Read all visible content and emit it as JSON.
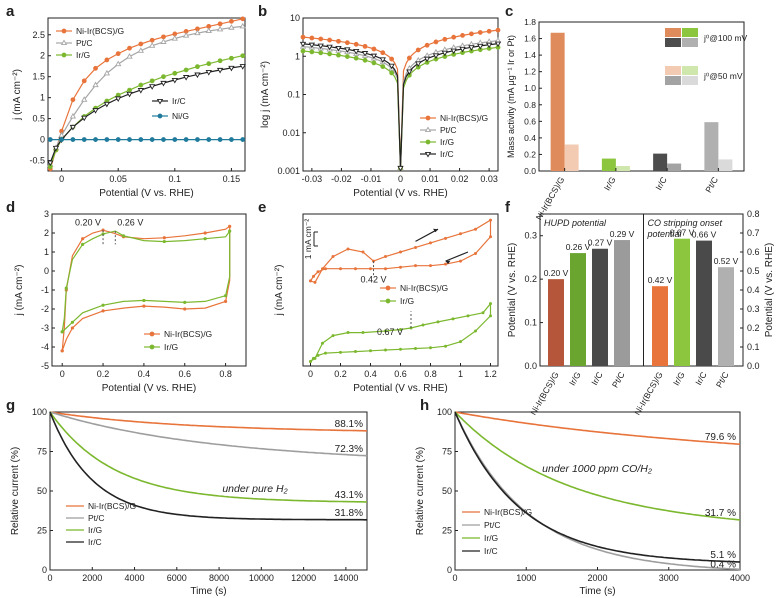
{
  "colors": {
    "orange": "#e8743b",
    "lightgray": "#a6a6a6",
    "green": "#7cb82f",
    "black": "#222222",
    "teal": "#1f7a9c",
    "grayC": "#9e9e9e"
  },
  "chart_data": [
    {
      "panel": "a",
      "type": "line",
      "title": "",
      "xlabel": "Potential (V vs. RHE)",
      "ylabel": "j (mA cm⁻²)",
      "xlim": [
        -0.012,
        0.162
      ],
      "ylim": [
        -0.75,
        2.9
      ],
      "xticks": [
        0,
        0.05,
        0.1,
        0.15
      ],
      "yticks": [
        -0.5,
        0,
        0.5,
        1,
        1.5,
        2,
        2.5
      ],
      "legend_upper": [
        "Ni-Ir(BCS)/G",
        "Pt/C",
        "Ir/G"
      ],
      "legend_lower": [
        "Ir/C",
        "Ni/G"
      ],
      "series": [
        {
          "name": "Ni-Ir(BCS)/G",
          "color": "orange",
          "marker": "circle-filled",
          "x": [
            -0.01,
            -0.005,
            0,
            0.01,
            0.02,
            0.03,
            0.04,
            0.05,
            0.06,
            0.07,
            0.08,
            0.09,
            0.1,
            0.11,
            0.12,
            0.13,
            0.14,
            0.15,
            0.16
          ],
          "y": [
            -0.7,
            -0.25,
            0.2,
            0.95,
            1.4,
            1.7,
            1.9,
            2.05,
            2.18,
            2.28,
            2.37,
            2.45,
            2.52,
            2.58,
            2.64,
            2.7,
            2.76,
            2.82,
            2.88
          ]
        },
        {
          "name": "Pt/C",
          "color": "lightgray",
          "marker": "triangle-open",
          "x": [
            -0.01,
            -0.005,
            0,
            0.01,
            0.02,
            0.03,
            0.04,
            0.05,
            0.06,
            0.07,
            0.08,
            0.09,
            0.1,
            0.11,
            0.12,
            0.13,
            0.14,
            0.15,
            0.16
          ],
          "y": [
            -0.6,
            -0.2,
            0.1,
            0.55,
            0.95,
            1.3,
            1.58,
            1.8,
            1.98,
            2.12,
            2.24,
            2.33,
            2.41,
            2.48,
            2.54,
            2.59,
            2.63,
            2.67,
            2.7
          ]
        },
        {
          "name": "Ir/G",
          "color": "green",
          "marker": "circle-filled",
          "x": [
            -0.01,
            -0.005,
            0,
            0.01,
            0.02,
            0.03,
            0.04,
            0.05,
            0.06,
            0.07,
            0.08,
            0.09,
            0.1,
            0.11,
            0.12,
            0.13,
            0.14,
            0.15,
            0.16
          ],
          "y": [
            -0.65,
            -0.25,
            0.0,
            0.3,
            0.55,
            0.75,
            0.92,
            1.06,
            1.18,
            1.3,
            1.4,
            1.5,
            1.58,
            1.66,
            1.74,
            1.81,
            1.88,
            1.94,
            2.0
          ]
        },
        {
          "name": "Ir/C",
          "color": "black",
          "marker": "triangle-down-open",
          "x": [
            -0.01,
            -0.005,
            0,
            0.01,
            0.02,
            0.03,
            0.04,
            0.05,
            0.06,
            0.07,
            0.08,
            0.09,
            0.1,
            0.11,
            0.12,
            0.13,
            0.14,
            0.15,
            0.16
          ],
          "y": [
            -0.55,
            -0.2,
            0.0,
            0.3,
            0.52,
            0.7,
            0.85,
            0.98,
            1.09,
            1.18,
            1.27,
            1.35,
            1.42,
            1.49,
            1.55,
            1.61,
            1.66,
            1.71,
            1.75
          ]
        },
        {
          "name": "Ni/G",
          "color": "teal",
          "marker": "circle-filled",
          "x": [
            -0.01,
            0,
            0.01,
            0.02,
            0.03,
            0.04,
            0.05,
            0.06,
            0.07,
            0.08,
            0.09,
            0.1,
            0.11,
            0.12,
            0.13,
            0.14,
            0.15,
            0.16
          ],
          "y": [
            0,
            0,
            0,
            0,
            0,
            0,
            0,
            0,
            0,
            0,
            0,
            0,
            0,
            0,
            0,
            0,
            0,
            0
          ]
        }
      ]
    },
    {
      "panel": "b",
      "type": "line",
      "title": "",
      "xlabel": "Potential (V vs. RHE)",
      "ylabel": "log j (mA cm⁻²)",
      "yscale": "log",
      "xlim": [
        -0.033,
        0.033
      ],
      "ylim": [
        0.001,
        10
      ],
      "xticks": [
        -0.03,
        -0.02,
        -0.01,
        0,
        0.01,
        0.02,
        0.03
      ],
      "xtick_labels": [
        "-0.03",
        "-0.02",
        "-0.01",
        "0",
        "0.01",
        "0.02",
        "0.03"
      ],
      "yticks": [
        0.001,
        0.01,
        0.1,
        1,
        10
      ],
      "ytick_labels": [
        "0.001",
        "0.01",
        "0.1",
        "1",
        "10"
      ],
      "legend": [
        "Ni-Ir(BCS)/G",
        "Pt/C",
        "Ir/G",
        "Ir/C"
      ],
      "series": [
        {
          "name": "Ni-Ir(BCS)/G",
          "color": "orange",
          "marker": "circle-filled",
          "a": 3.0,
          "b": 4.5
        },
        {
          "name": "Pt/C",
          "color": "lightgray",
          "marker": "triangle-open",
          "a": 1.7,
          "b": 2.4
        },
        {
          "name": "Ir/G",
          "color": "green",
          "marker": "circle-filled",
          "a": 1.3,
          "b": 1.6
        },
        {
          "name": "Ir/C",
          "color": "black",
          "marker": "triangle-down-open",
          "a": 2.0,
          "b": 2.0
        }
      ]
    },
    {
      "panel": "c",
      "type": "bar",
      "title": "",
      "xlabel": "",
      "ylabel": "Mass activity (mA μg⁻¹ Ir or Pt)",
      "ylim": [
        0,
        1.8
      ],
      "yticks": [
        0,
        0.2,
        0.4,
        0.6,
        0.8,
        1.0,
        1.2,
        1.4,
        1.6,
        1.8
      ],
      "categories": [
        "Ni-Ir(BCS)/G",
        "Ir/G",
        "Ir/C",
        "Pt/C"
      ],
      "series": [
        {
          "name": "j⁰@100 mV",
          "values": [
            1.67,
            0.15,
            0.21,
            0.59
          ],
          "colors": [
            "#df8b5b",
            "#8cc63f",
            "#4d4d4d",
            "#b0b0b0"
          ]
        },
        {
          "name": "j⁰@50 mV",
          "values": [
            0.32,
            0.06,
            0.09,
            0.14
          ],
          "colors": [
            "#f3cbb3",
            "#cfe6ad",
            "#a3a3a3",
            "#dadada"
          ]
        }
      ],
      "legend_100": "j⁰@100 mV",
      "legend_50": "j⁰@50 mV"
    },
    {
      "panel": "d",
      "type": "line",
      "title": "",
      "xlabel": "Potential (V vs. RHE)",
      "ylabel": "j (mA cm⁻²)",
      "xlim": [
        -0.05,
        0.9
      ],
      "ylim": [
        -5,
        3
      ],
      "xticks": [
        0,
        0.2,
        0.4,
        0.6,
        0.8
      ],
      "yticks": [
        -5,
        -4,
        -3,
        -2,
        -1,
        0,
        1,
        2,
        3
      ],
      "legend": [
        "Ni-Ir(BCS)/G",
        "Ir/G"
      ],
      "annotations": [
        "0.20 V",
        "0.26 V"
      ],
      "series": [
        {
          "name": "Ni-Ir(BCS)/G",
          "color": "orange",
          "x": [
            0,
            0.01,
            0.02,
            0.05,
            0.1,
            0.15,
            0.2,
            0.25,
            0.3,
            0.4,
            0.5,
            0.6,
            0.7,
            0.8,
            0.82,
            0.82,
            0.8,
            0.7,
            0.6,
            0.5,
            0.4,
            0.3,
            0.2,
            0.1,
            0.05,
            0.02,
            0
          ],
          "y": [
            -4.2,
            -3.0,
            -1.0,
            0.8,
            1.7,
            2.0,
            2.15,
            2.0,
            1.8,
            1.7,
            1.75,
            1.85,
            2.0,
            2.2,
            2.35,
            -0.5,
            -1.6,
            -1.95,
            -2.0,
            -1.9,
            -1.85,
            -1.95,
            -2.1,
            -2.5,
            -3.0,
            -3.6,
            -4.2
          ]
        },
        {
          "name": "Ir/G",
          "color": "green",
          "x": [
            0,
            0.01,
            0.02,
            0.05,
            0.1,
            0.15,
            0.2,
            0.26,
            0.3,
            0.4,
            0.5,
            0.6,
            0.7,
            0.8,
            0.82,
            0.82,
            0.8,
            0.7,
            0.6,
            0.5,
            0.4,
            0.3,
            0.2,
            0.1,
            0.05,
            0.02,
            0
          ],
          "y": [
            -3.2,
            -2.5,
            -0.9,
            0.6,
            1.4,
            1.7,
            1.95,
            2.1,
            1.85,
            1.6,
            1.55,
            1.6,
            1.7,
            1.8,
            2.1,
            -0.3,
            -1.3,
            -1.6,
            -1.65,
            -1.6,
            -1.55,
            -1.6,
            -1.8,
            -2.2,
            -2.7,
            -3.0,
            -3.2
          ]
        }
      ]
    },
    {
      "panel": "e",
      "type": "line",
      "title": "",
      "xlabel": "Potential (V vs. RHE)",
      "ylabel": "j (mA cm⁻²)",
      "xlim": [
        -0.05,
        1.25
      ],
      "ylim": [
        0,
        10
      ],
      "xticks": [
        0,
        0.2,
        0.4,
        0.6,
        0.8,
        1.0,
        1.2
      ],
      "xtick_labels": [
        "0",
        "0.2",
        "0.4",
        "0.6",
        "0.8",
        "1",
        "1.2"
      ],
      "scale_bar": "1 mA cm⁻²",
      "annotations": [
        "0.42 V",
        "0.67 V"
      ],
      "legend": [
        "Ni-Ir(BCS)/G",
        "Ir/G"
      ],
      "series": [
        {
          "name": "Ni-Ir(BCS)/G",
          "color": "orange",
          "x": [
            0,
            0.03,
            0.08,
            0.15,
            0.25,
            0.35,
            0.42,
            0.5,
            0.6,
            0.7,
            0.8,
            0.9,
            1.0,
            1.1,
            1.2,
            1.2,
            1.1,
            1.0,
            0.9,
            0.8,
            0.7,
            0.6,
            0.5,
            0.4,
            0.3,
            0.2,
            0.1,
            0.05,
            0.02,
            0
          ],
          "y": [
            5.6,
            5.5,
            6.4,
            7.2,
            7.7,
            7.5,
            6.9,
            7.2,
            7.5,
            7.8,
            8.1,
            8.4,
            8.7,
            9.0,
            9.6,
            8.5,
            7.4,
            6.9,
            6.7,
            6.6,
            6.6,
            6.5,
            6.4,
            6.4,
            6.4,
            6.4,
            6.4,
            6.2,
            5.9,
            5.6
          ]
        },
        {
          "name": "Ir/G",
          "color": "green",
          "x": [
            0,
            0.03,
            0.08,
            0.15,
            0.25,
            0.35,
            0.5,
            0.6,
            0.67,
            0.75,
            0.85,
            0.95,
            1.05,
            1.15,
            1.2,
            1.2,
            1.1,
            1.0,
            0.9,
            0.8,
            0.7,
            0.6,
            0.5,
            0.4,
            0.3,
            0.2,
            0.1,
            0.05,
            0.02,
            0
          ],
          "y": [
            0.3,
            0.5,
            1.5,
            2.0,
            2.2,
            2.2,
            2.3,
            2.4,
            2.5,
            2.7,
            2.9,
            3.1,
            3.3,
            3.5,
            4.1,
            3.3,
            2.3,
            1.6,
            1.3,
            1.2,
            1.15,
            1.1,
            1.05,
            1.0,
            0.95,
            0.9,
            0.85,
            0.7,
            0.5,
            0.3
          ]
        }
      ]
    },
    {
      "panel": "f",
      "type": "bar",
      "title": "",
      "ylabel_left": "Potential (V vs. RHE)",
      "ylabel_right": "Potential (V vs. RHE)",
      "ylim_left": [
        0,
        0.35
      ],
      "ylim_right": [
        0,
        0.8
      ],
      "yticks_left": [
        0,
        0.1,
        0.2,
        0.3
      ],
      "yticks_right": [
        0,
        0.1,
        0.2,
        0.3,
        0.4,
        0.5,
        0.6,
        0.7,
        0.8
      ],
      "group_left_title": "HUPD potential",
      "group_right_title_line1": "CO stripping onset",
      "group_right_title_line2": "potential",
      "categories": [
        "Ni-Ir(BCS)/G",
        "Ir/G",
        "Ir/C",
        "Pt/C",
        "Ni-Ir(BCS)/G",
        "Ir/G",
        "Ir/C",
        "Pt/C"
      ],
      "values": [
        0.2,
        0.26,
        0.27,
        0.29,
        0.42,
        0.67,
        0.66,
        0.52
      ],
      "value_labels": [
        "0.20 V",
        "0.26 V",
        "0.27 V",
        "0.29 V",
        "0.42 V",
        "0.67 V",
        "0.66 V",
        "0.52 V"
      ],
      "colors": [
        "#b5563a",
        "#6aa530",
        "#4a4a4a",
        "#9b9b9b",
        "#e8743b",
        "#8cc63f",
        "#4a4a4a",
        "#b0b0b0"
      ]
    },
    {
      "panel": "g",
      "type": "line",
      "title": "",
      "xlabel": "Time (s)",
      "ylabel": "Relative current (%)",
      "xlim": [
        0,
        15000
      ],
      "ylim": [
        0,
        100
      ],
      "xticks": [
        0,
        2000,
        4000,
        6000,
        8000,
        10000,
        12000,
        14000
      ],
      "yticks": [
        0,
        25,
        50,
        75,
        100
      ],
      "annotation": "under pure H₂",
      "legend": [
        "Ni-Ir(BCS)/G",
        "Pt/C",
        "Ir/G",
        "Ir/C"
      ],
      "end_labels": [
        "88.1%",
        "72.3%",
        "43.1%",
        "31.8%"
      ],
      "series": [
        {
          "name": "Ni-Ir(BCS)/G",
          "color": "orange",
          "final": 88.1,
          "k": 6000
        },
        {
          "name": "Pt/C",
          "color": "grayC",
          "final": 72.3,
          "k": 7000
        },
        {
          "name": "Ir/G",
          "color": "green",
          "final": 43.1,
          "k": 3000
        },
        {
          "name": "Ir/C",
          "color": "black",
          "final": 31.8,
          "k": 2000
        }
      ]
    },
    {
      "panel": "h",
      "type": "line",
      "title": "",
      "xlabel": "Time (s)",
      "ylabel": "Relative current (%)",
      "xlim": [
        0,
        4000
      ],
      "ylim": [
        0,
        100
      ],
      "xticks": [
        0,
        1000,
        2000,
        3000,
        4000
      ],
      "yticks": [
        0,
        25,
        50,
        75,
        100
      ],
      "annotation": "under 1000 ppm CO/H₂",
      "legend": [
        "Ni-Ir(BCS)/G",
        "Pt/C",
        "Ir/G",
        "Ir/C"
      ],
      "end_labels": [
        "79.6 %",
        "0.4 %",
        "31.7 %",
        "5.1 %"
      ],
      "series": [
        {
          "name": "Ni-Ir(BCS)/G",
          "color": "orange",
          "final": 79.6,
          "k": 3000
        },
        {
          "name": "Pt/C",
          "color": "grayC",
          "final": 0.4,
          "k": 1000
        },
        {
          "name": "Ir/G",
          "color": "green",
          "final": 31.7,
          "k": 1500
        },
        {
          "name": "Ir/C",
          "color": "black",
          "final": 5.1,
          "k": 900
        }
      ]
    }
  ],
  "panel_labels": [
    "a",
    "b",
    "c",
    "d",
    "e",
    "f",
    "g",
    "h"
  ]
}
